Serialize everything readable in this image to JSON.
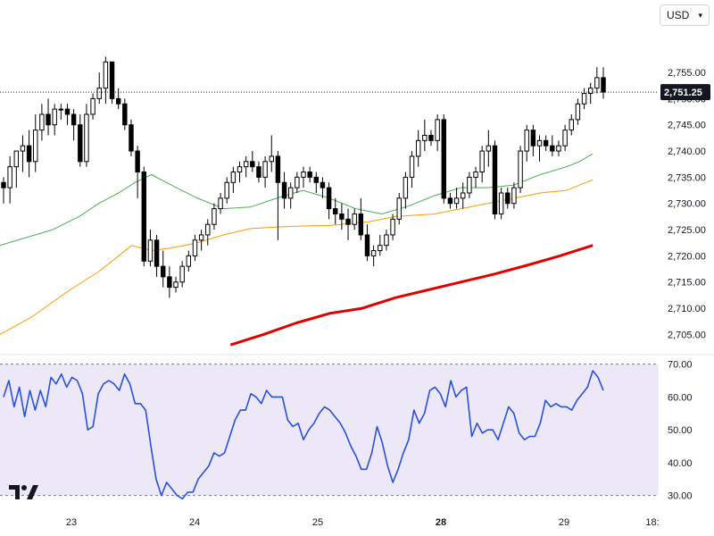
{
  "currency_selector": {
    "label": "USD",
    "icon": "chevron-down-icon"
  },
  "colors": {
    "bull": "#000000",
    "bear": "#000000",
    "ma_short": "#4caf50",
    "ma_mid": "#ff9800",
    "ma_long": "#e00000",
    "rsi_line": "#2850d8",
    "rsi_band": "#ede8f8",
    "last_price_bg": "#131722",
    "logo": "#131722"
  },
  "chart_data": [
    {
      "type": "candlestick",
      "title": "",
      "ylim": [
        2702,
        2762
      ],
      "yticks": [
        2705,
        2710,
        2715,
        2720,
        2725,
        2730,
        2735,
        2740,
        2745,
        2750,
        2755
      ],
      "ytick_labels": [
        "2,705.00",
        "2,710.00",
        "2,715.00",
        "2,720.00",
        "2,725.00",
        "2,730.00",
        "2,735.00",
        "2,740.00",
        "2,745.00",
        "2,750.00",
        "2,755.00"
      ],
      "last_price": 2751.25,
      "last_price_label": "2,751.25",
      "x_labels": [
        "23",
        "24",
        "25",
        "28",
        "29",
        "18:"
      ],
      "candles": [
        [
          2734,
          2735,
          2730,
          2733
        ],
        [
          2733,
          2739,
          2730,
          2737
        ],
        [
          2737,
          2740,
          2733,
          2740
        ],
        [
          2740,
          2743,
          2736,
          2741
        ],
        [
          2741,
          2744,
          2735,
          2738
        ],
        [
          2738,
          2747,
          2736,
          2744
        ],
        [
          2744,
          2749,
          2742,
          2747
        ],
        [
          2747,
          2750,
          2743,
          2745
        ],
        [
          2745,
          2749,
          2743,
          2748
        ],
        [
          2748,
          2749,
          2746,
          2748
        ],
        [
          2748,
          2749,
          2745,
          2747
        ],
        [
          2747,
          2748,
          2742,
          2745
        ],
        [
          2745,
          2747,
          2737,
          2738
        ],
        [
          2738,
          2749,
          2737,
          2747
        ],
        [
          2747,
          2751,
          2746,
          2750
        ],
        [
          2750,
          2755,
          2749,
          2752
        ],
        [
          2752,
          2758,
          2749,
          2757
        ],
        [
          2757,
          2757,
          2749,
          2750
        ],
        [
          2750,
          2752,
          2748,
          2749
        ],
        [
          2749,
          2750,
          2744,
          2745
        ],
        [
          2745,
          2746,
          2739,
          2740
        ],
        [
          2740,
          2741,
          2731,
          2736
        ],
        [
          2736,
          2737,
          2718,
          2719
        ],
        [
          2719,
          2725,
          2718,
          2723
        ],
        [
          2723,
          2724,
          2716,
          2718
        ],
        [
          2718,
          2721,
          2714,
          2716
        ],
        [
          2716,
          2718,
          2712,
          2714
        ],
        [
          2714,
          2716,
          2713,
          2715
        ],
        [
          2715,
          2719,
          2714,
          2718
        ],
        [
          2718,
          2721,
          2717,
          2720
        ],
        [
          2720,
          2724,
          2719,
          2723
        ],
        [
          2723,
          2725,
          2721,
          2724
        ],
        [
          2724,
          2727,
          2722,
          2726
        ],
        [
          2726,
          2730,
          2725,
          2729
        ],
        [
          2729,
          2732,
          2728,
          2731
        ],
        [
          2731,
          2735,
          2730,
          2734
        ],
        [
          2734,
          2737,
          2732,
          2736
        ],
        [
          2736,
          2738,
          2734,
          2737
        ],
        [
          2737,
          2739,
          2735,
          2738
        ],
        [
          2738,
          2740,
          2736,
          2737
        ],
        [
          2737,
          2738,
          2734,
          2735
        ],
        [
          2735,
          2739,
          2733,
          2738
        ],
        [
          2738,
          2743,
          2736,
          2739
        ],
        [
          2739,
          2740,
          2723,
          2734
        ],
        [
          2734,
          2736,
          2729,
          2731
        ],
        [
          2731,
          2734,
          2729,
          2733
        ],
        [
          2733,
          2736,
          2732,
          2735
        ],
        [
          2735,
          2737,
          2733,
          2736
        ],
        [
          2736,
          2737,
          2734,
          2735
        ],
        [
          2735,
          2736,
          2732,
          2734
        ],
        [
          2734,
          2735,
          2731,
          2733
        ],
        [
          2733,
          2734,
          2727,
          2729
        ],
        [
          2729,
          2731,
          2726,
          2728
        ],
        [
          2728,
          2730,
          2725,
          2727
        ],
        [
          2727,
          2729,
          2723,
          2726
        ],
        [
          2726,
          2729,
          2725,
          2728
        ],
        [
          2728,
          2731,
          2723,
          2724
        ],
        [
          2724,
          2726,
          2719,
          2720
        ],
        [
          2720,
          2722,
          2718,
          2721
        ],
        [
          2721,
          2724,
          2720,
          2722
        ],
        [
          2722,
          2725,
          2721,
          2724
        ],
        [
          2724,
          2728,
          2723,
          2727
        ],
        [
          2727,
          2732,
          2726,
          2731
        ],
        [
          2731,
          2736,
          2729,
          2735
        ],
        [
          2735,
          2740,
          2733,
          2739
        ],
        [
          2739,
          2744,
          2737,
          2742
        ],
        [
          2742,
          2746,
          2740,
          2743
        ],
        [
          2743,
          2744,
          2741,
          2742
        ],
        [
          2742,
          2747,
          2740,
          2746
        ],
        [
          2746,
          2747,
          2730,
          2731
        ],
        [
          2731,
          2732,
          2729,
          2730
        ],
        [
          2730,
          2733,
          2729,
          2731
        ],
        [
          2731,
          2734,
          2729,
          2732
        ],
        [
          2732,
          2736,
          2731,
          2735
        ],
        [
          2735,
          2737,
          2733,
          2736
        ],
        [
          2736,
          2741,
          2734,
          2740
        ],
        [
          2740,
          2744,
          2737,
          2741
        ],
        [
          2741,
          2742,
          2727,
          2728
        ],
        [
          2728,
          2733,
          2727,
          2732
        ],
        [
          2732,
          2733,
          2729,
          2730
        ],
        [
          2730,
          2734,
          2729,
          2733
        ],
        [
          2733,
          2741,
          2732,
          2740
        ],
        [
          2740,
          2745,
          2738,
          2744
        ],
        [
          2744,
          2745,
          2739,
          2741
        ],
        [
          2741,
          2743,
          2738,
          2742
        ],
        [
          2742,
          2743,
          2740,
          2741
        ],
        [
          2741,
          2743,
          2739,
          2740
        ],
        [
          2740,
          2742,
          2739,
          2741
        ],
        [
          2741,
          2745,
          2740,
          2744
        ],
        [
          2744,
          2747,
          2743,
          2746
        ],
        [
          2746,
          2750,
          2745,
          2749
        ],
        [
          2749,
          2752,
          2748,
          2751
        ],
        [
          2751,
          2753,
          2749,
          2752
        ],
        [
          2752,
          2756,
          2751,
          2754
        ],
        [
          2754,
          2756,
          2750,
          2751.25
        ]
      ],
      "ma_short": [
        [
          0,
          2722
        ],
        [
          0.04,
          2723.5
        ],
        [
          0.08,
          2725
        ],
        [
          0.12,
          2727.5
        ],
        [
          0.15,
          2730
        ],
        [
          0.18,
          2732
        ],
        [
          0.205,
          2734
        ],
        [
          0.23,
          2735.5
        ],
        [
          0.26,
          2733.5
        ],
        [
          0.3,
          2731
        ],
        [
          0.34,
          2729
        ],
        [
          0.38,
          2729.3
        ],
        [
          0.42,
          2731
        ],
        [
          0.46,
          2732.5
        ],
        [
          0.5,
          2731
        ],
        [
          0.54,
          2729
        ],
        [
          0.58,
          2728
        ],
        [
          0.62,
          2729.5
        ],
        [
          0.66,
          2731.5
        ],
        [
          0.7,
          2733
        ],
        [
          0.74,
          2733
        ],
        [
          0.78,
          2733.5
        ],
        [
          0.82,
          2735.5
        ],
        [
          0.86,
          2737
        ],
        [
          0.88,
          2738
        ],
        [
          0.9,
          2739.5
        ]
      ],
      "ma_mid": [
        [
          0,
          2705
        ],
        [
          0.05,
          2708.5
        ],
        [
          0.1,
          2713
        ],
        [
          0.15,
          2717
        ],
        [
          0.2,
          2722
        ],
        [
          0.23,
          2721
        ],
        [
          0.26,
          2721.5
        ],
        [
          0.3,
          2722.5
        ],
        [
          0.34,
          2724
        ],
        [
          0.38,
          2725.2
        ],
        [
          0.42,
          2725.5
        ],
        [
          0.46,
          2725.7
        ],
        [
          0.5,
          2725.8
        ],
        [
          0.56,
          2726.5
        ],
        [
          0.6,
          2727.5
        ],
        [
          0.66,
          2728
        ],
        [
          0.7,
          2729
        ],
        [
          0.74,
          2730
        ],
        [
          0.78,
          2731
        ],
        [
          0.82,
          2732
        ],
        [
          0.86,
          2732.5
        ],
        [
          0.88,
          2733.5
        ],
        [
          0.9,
          2734.5
        ]
      ],
      "ma_long": [
        [
          0.35,
          2703
        ],
        [
          0.4,
          2705
        ],
        [
          0.45,
          2707.2
        ],
        [
          0.5,
          2709
        ],
        [
          0.55,
          2710
        ],
        [
          0.6,
          2712
        ],
        [
          0.65,
          2713.5
        ],
        [
          0.7,
          2715
        ],
        [
          0.75,
          2716.5
        ],
        [
          0.8,
          2718.2
        ],
        [
          0.85,
          2720
        ],
        [
          0.9,
          2722
        ]
      ]
    },
    {
      "type": "line",
      "title": "",
      "ylim": [
        28,
        71
      ],
      "yticks": [
        30,
        40,
        50,
        60,
        70
      ],
      "ytick_labels": [
        "30.00",
        "40.00",
        "50.00",
        "60.00",
        "70.00"
      ],
      "band": [
        30,
        70
      ],
      "series": [
        {
          "values": [
            60,
            65,
            57,
            63,
            54,
            62,
            56,
            62,
            57,
            66,
            64,
            67,
            63,
            66,
            65,
            61,
            50,
            51,
            61,
            64,
            65,
            64,
            62,
            67,
            64,
            58,
            58,
            56,
            45,
            35,
            30,
            34,
            32,
            30,
            29,
            31,
            31,
            35,
            37,
            39,
            43,
            42,
            43,
            48,
            53,
            56,
            56,
            61,
            60,
            58,
            62,
            60,
            60,
            60,
            53,
            51,
            52,
            47,
            50,
            52,
            55,
            57,
            56,
            54,
            52,
            49,
            45,
            42,
            38,
            38,
            43,
            51,
            46,
            39,
            34,
            38,
            43,
            47,
            56,
            52,
            55,
            62,
            63,
            61,
            57,
            65,
            60,
            62,
            63,
            48,
            52,
            49,
            50,
            50,
            47,
            52,
            57,
            55,
            49,
            47,
            48,
            48,
            52,
            59,
            57,
            58,
            57,
            57,
            56,
            59,
            61,
            63,
            68,
            66,
            62
          ]
        }
      ]
    }
  ]
}
